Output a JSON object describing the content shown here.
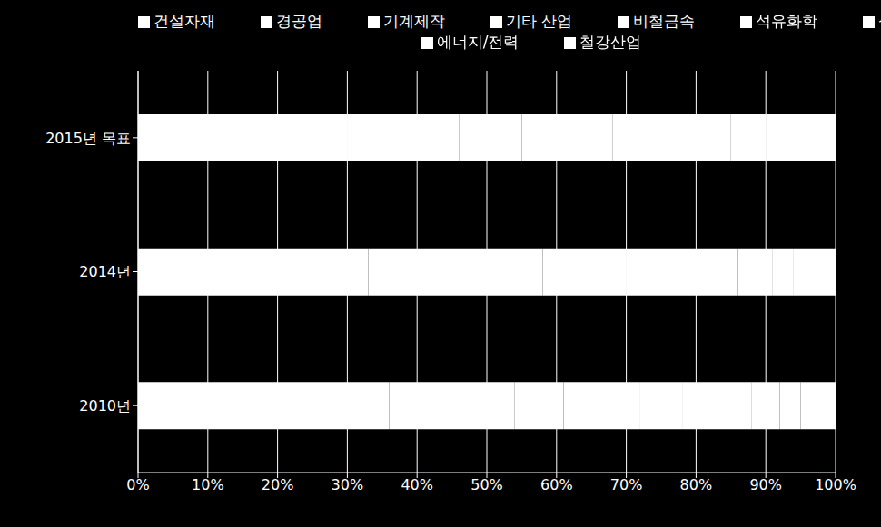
{
  "chart_data": {
    "type": "bar",
    "orientation": "horizontal",
    "stacked": true,
    "grid": true,
    "legend": "top",
    "categories": [
      "2015년 목표",
      "2014년",
      "2010년"
    ],
    "xlim": [
      0,
      100
    ],
    "xticks": [
      {
        "value": 0,
        "label": "0%"
      },
      {
        "value": 10,
        "label": "10%"
      },
      {
        "value": 20,
        "label": "20%"
      },
      {
        "value": 30,
        "label": "30%"
      },
      {
        "value": 40,
        "label": "40%"
      },
      {
        "value": 50,
        "label": "50%"
      },
      {
        "value": 60,
        "label": "60%"
      },
      {
        "value": 70,
        "label": "70%"
      },
      {
        "value": 80,
        "label": "80%"
      },
      {
        "value": 90,
        "label": "90%"
      },
      {
        "value": 100,
        "label": "100%"
      }
    ],
    "series": [
      {
        "name": "에너지/전력",
        "color": "#ffffff",
        "values": [
          30,
          33,
          36
        ]
      },
      {
        "name": "철강산업",
        "color": "#ffffff",
        "values": [
          16,
          17,
          18
        ]
      },
      {
        "name": "비철금속",
        "color": "#ffffff",
        "values": [
          9,
          8,
          7
        ]
      },
      {
        "name": "석유화학",
        "color": "#ffffff",
        "values": [
          13,
          12,
          11
        ]
      },
      {
        "name": "기계제작",
        "color": "#ffffff",
        "values": [
          7,
          6,
          6
        ]
      },
      {
        "name": "건설자재",
        "color": "#ffffff",
        "values": [
          10,
          10,
          10
        ]
      },
      {
        "name": "경공업",
        "color": "#ffffff",
        "values": [
          5,
          5,
          4
        ]
      },
      {
        "name": "식품업",
        "color": "#ffffff",
        "values": [
          3,
          3,
          3
        ]
      },
      {
        "name": "기타 산업",
        "color": "#ffffff",
        "values": [
          7,
          6,
          5
        ]
      }
    ]
  }
}
